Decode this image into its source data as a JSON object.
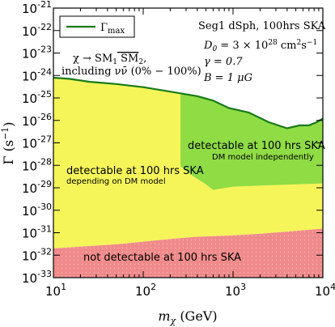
{
  "chart_data": {
    "type": "area",
    "title": "",
    "x_axis": {
      "label_main": "m",
      "label_sub": "χ",
      "label_unit": "(GeV)",
      "scale": "log",
      "range": [
        10,
        10000
      ],
      "ticks": [
        {
          "base": "10",
          "exp": "1",
          "value": 10
        },
        {
          "base": "10",
          "exp": "2",
          "value": 100
        },
        {
          "base": "10",
          "exp": "3",
          "value": 1000
        },
        {
          "base": "10",
          "exp": "4",
          "value": 10000
        }
      ]
    },
    "y_axis": {
      "label_main": "Γ",
      "label_unit": "(s",
      "label_exp": "−1",
      "label_close": ")",
      "scale": "log",
      "range": [
        1e-33,
        1e-21
      ],
      "ticks": [
        {
          "base": "10",
          "exp": "-21",
          "value": -21
        },
        {
          "base": "10",
          "exp": "-22",
          "value": -22
        },
        {
          "base": "10",
          "exp": "-23",
          "value": -23
        },
        {
          "base": "10",
          "exp": "-24",
          "value": -24
        },
        {
          "base": "10",
          "exp": "-25",
          "value": -25
        },
        {
          "base": "10",
          "exp": "-26",
          "value": -26
        },
        {
          "base": "10",
          "exp": "-27",
          "value": -27
        },
        {
          "base": "10",
          "exp": "-28",
          "value": -28
        },
        {
          "base": "10",
          "exp": "-29",
          "value": -29
        },
        {
          "base": "10",
          "exp": "-30",
          "value": -30
        },
        {
          "base": "10",
          "exp": "-31",
          "value": -31
        },
        {
          "base": "10",
          "exp": "-32",
          "value": -32
        },
        {
          "base": "10",
          "exp": "-33",
          "value": -33
        }
      ]
    },
    "legend": {
      "placement": "top-left",
      "entry_main": "Γ",
      "entry_sub": "max",
      "color": "#1a7a1a"
    },
    "series": [
      {
        "name": "Γmax",
        "color": "#1a7a1a",
        "points": [
          [
            10,
            -24.1
          ],
          [
            15,
            -24.15
          ],
          [
            25,
            -24.28
          ],
          [
            50,
            -24.38
          ],
          [
            100,
            -24.52
          ],
          [
            200,
            -24.72
          ],
          [
            400,
            -24.92
          ],
          [
            600,
            -25.12
          ],
          [
            900,
            -25.45
          ],
          [
            1500,
            -25.65
          ],
          [
            2500,
            -26.08
          ],
          [
            4000,
            -26.35
          ],
          [
            5500,
            -26.22
          ],
          [
            7000,
            -26.22
          ],
          [
            8500,
            -26.08
          ],
          [
            10000,
            -25.92
          ]
        ]
      }
    ],
    "regions": [
      {
        "kind": "undetectable",
        "color": "#f08a8a",
        "pattern": "dots",
        "upper_boundary": [
          [
            10,
            -31.7
          ],
          [
            20,
            -31.62
          ],
          [
            50,
            -31.52
          ],
          [
            100,
            -31.4
          ],
          [
            200,
            -31.28
          ],
          [
            400,
            -31.18
          ],
          [
            1000,
            -31.12
          ],
          [
            2000,
            -31.05
          ],
          [
            5000,
            -30.92
          ],
          [
            10000,
            -30.82
          ]
        ]
      },
      {
        "kind": "model-dependent",
        "color": "#f5f55a",
        "upper_boundary": "series:Γmax",
        "lower_boundary": "region:undetectable"
      },
      {
        "kind": "model-independent",
        "color": "#8fdc45",
        "x_start": 260,
        "lower_boundary": [
          [
            260,
            -28.05
          ],
          [
            350,
            -28.45
          ],
          [
            500,
            -28.85
          ],
          [
            600,
            -29.1
          ],
          [
            700,
            -29.05
          ],
          [
            1000,
            -28.95
          ],
          [
            2000,
            -28.9
          ],
          [
            5000,
            -28.85
          ],
          [
            10000,
            -28.8
          ]
        ],
        "upper_boundary": "series:Γmax"
      }
    ],
    "annotations": {
      "process_line1_a": "χ → SM",
      "process_line1_sub1": "1",
      "process_line1_b": " SM",
      "process_line1_sub2": "2",
      "process_line1_c": ",",
      "process_line2": "including νν̄ (0% − 100%)",
      "source": "Seg1 dSph, 100hrs SKA",
      "param_d0": "D",
      "param_d0_sub": "0",
      "param_d0_val": " = 3 × 10",
      "param_d0_exp": "28",
      "param_d0_unit": " cm",
      "param_d0_unit_exp": "2",
      "param_d0_unit_b": "s",
      "param_d0_unit_b_exp": "−1",
      "param_gamma": "γ = 0.7",
      "param_b": "B = 1 μG",
      "label_indep_1": "detectable at 100 hrs SKA",
      "label_indep_2": "DM model independently",
      "label_dep_1": "detectable at 100 hrs SKA",
      "label_dep_2": "depending on DM model",
      "label_undet": "not detectable at 100 hrs SKA"
    }
  }
}
